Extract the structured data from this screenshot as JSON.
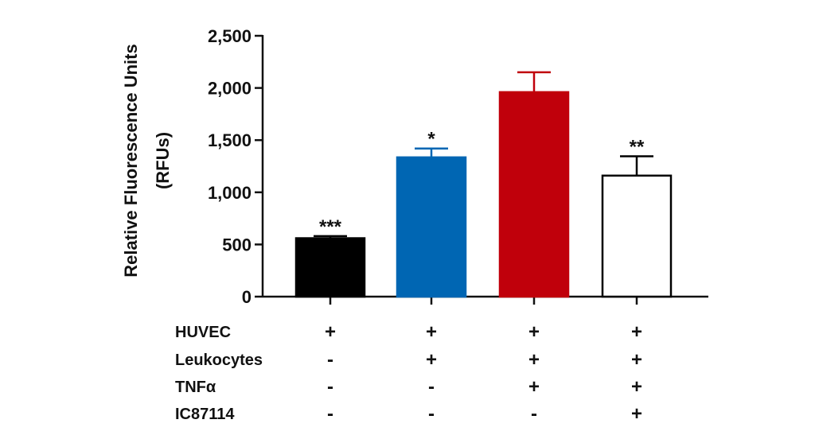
{
  "chart_data": {
    "type": "bar",
    "ylabel_lines": [
      "Relative Fluorescence Units",
      "(RFUs)"
    ],
    "ylim": [
      0,
      2500
    ],
    "yticks": [
      0,
      500,
      1000,
      1500,
      2000,
      2500
    ],
    "ytick_labels": [
      "0",
      "500",
      "1,000",
      "1,500",
      "2,000",
      "2,500"
    ],
    "grid": false,
    "legend": "none",
    "bars": [
      {
        "value": 560,
        "error": 20,
        "significance": "***",
        "fill": "#000000",
        "stroke": "#000000"
      },
      {
        "value": 1335,
        "error": 85,
        "significance": "*",
        "fill": "#0066b3",
        "stroke": "#0066b3"
      },
      {
        "value": 1960,
        "error": 190,
        "significance": "",
        "fill": "#c0000b",
        "stroke": "#c0000b"
      },
      {
        "value": 1160,
        "error": 185,
        "significance": "**",
        "fill": "#ffffff",
        "stroke": "#000000"
      }
    ],
    "conditions": [
      {
        "label": "HUVEC",
        "signs": [
          "+",
          "+",
          "+",
          "+"
        ]
      },
      {
        "label": "Leukocytes",
        "signs": [
          "-",
          "+",
          "+",
          "+"
        ]
      },
      {
        "label": "TNFα",
        "signs": [
          "-",
          "-",
          "+",
          "+"
        ]
      },
      {
        "label": "IC87114",
        "signs": [
          "-",
          "-",
          "-",
          "+"
        ]
      }
    ]
  }
}
